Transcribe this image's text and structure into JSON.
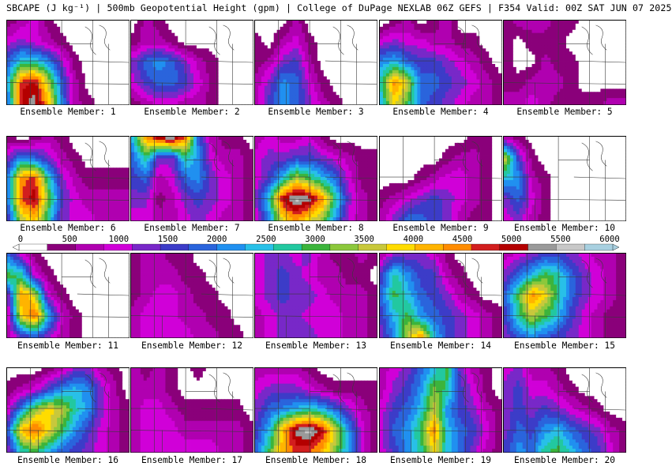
{
  "header": {
    "title": "SBCAPE (J kg⁻¹) | 500mb Geopotential Height (gpm) | College of DuPage NEXLAB 06Z GEFS | F354 Valid: 00Z SAT JUN 07 2025"
  },
  "panels": [
    {
      "label": "Ensemble Member: 1",
      "field": [
        [
          1,
          2,
          3,
          1,
          0,
          0,
          0,
          0,
          0,
          0
        ],
        [
          3,
          4,
          3,
          2,
          1,
          0,
          0,
          0,
          0,
          0
        ],
        [
          6,
          9,
          9,
          7,
          4,
          1,
          0,
          0,
          0,
          0
        ],
        [
          8,
          16,
          17,
          12,
          6,
          2,
          0,
          0,
          0,
          0
        ],
        [
          7,
          17,
          18,
          14,
          7,
          2,
          1,
          0,
          0,
          0
        ]
      ]
    },
    {
      "label": "Ensemble Member: 2",
      "field": [
        [
          0,
          2,
          1,
          0,
          0,
          0,
          0,
          0,
          0,
          0
        ],
        [
          1,
          2,
          2,
          1,
          0,
          0,
          0,
          0,
          0,
          0
        ],
        [
          4,
          6,
          7,
          6,
          4,
          2,
          1,
          0,
          0,
          0
        ],
        [
          3,
          5,
          6,
          6,
          5,
          3,
          1,
          0,
          0,
          0
        ],
        [
          1,
          2,
          3,
          3,
          2,
          2,
          1,
          0,
          0,
          0
        ]
      ]
    },
    {
      "label": "Ensemble Member: 3",
      "field": [
        [
          0,
          0,
          0,
          2,
          0,
          0,
          0,
          0,
          0,
          0
        ],
        [
          1,
          0,
          2,
          3,
          1,
          0,
          0,
          0,
          0,
          0
        ],
        [
          1,
          2,
          4,
          5,
          2,
          0,
          0,
          0,
          0,
          0
        ],
        [
          2,
          4,
          7,
          6,
          3,
          1,
          0,
          0,
          0,
          0
        ],
        [
          2,
          5,
          7,
          6,
          4,
          2,
          1,
          0,
          0,
          0
        ]
      ]
    },
    {
      "label": "Ensemble Member: 4",
      "field": [
        [
          0,
          1,
          2,
          0,
          1,
          2,
          0,
          0,
          0,
          0
        ],
        [
          3,
          4,
          3,
          3,
          2,
          2,
          1,
          1,
          0,
          0
        ],
        [
          7,
          8,
          6,
          5,
          5,
          4,
          3,
          2,
          1,
          0
        ],
        [
          9,
          15,
          12,
          6,
          6,
          5,
          4,
          3,
          2,
          1
        ],
        [
          8,
          13,
          10,
          6,
          5,
          4,
          3,
          2,
          2,
          1
        ]
      ]
    },
    {
      "label": "Ensemble Member: 5",
      "field": [
        [
          1,
          2,
          2,
          2,
          1,
          1,
          0,
          0,
          0,
          0
        ],
        [
          1,
          0,
          1,
          1,
          1,
          0,
          0,
          0,
          0,
          0
        ],
        [
          1,
          0,
          0,
          2,
          1,
          1,
          0,
          0,
          0,
          0
        ],
        [
          1,
          1,
          2,
          2,
          2,
          1,
          0,
          0,
          0,
          0
        ],
        [
          2,
          2,
          3,
          2,
          1,
          1,
          1,
          1,
          2,
          2
        ]
      ]
    },
    {
      "label": "Ensemble Member: 6",
      "field": [
        [
          1,
          0,
          1,
          2,
          1,
          0,
          0,
          0,
          0,
          0
        ],
        [
          4,
          7,
          6,
          4,
          2,
          1,
          0,
          0,
          0,
          0
        ],
        [
          7,
          15,
          16,
          9,
          4,
          2,
          1,
          1,
          1,
          1
        ],
        [
          7,
          16,
          17,
          11,
          5,
          3,
          2,
          2,
          2,
          2
        ],
        [
          5,
          12,
          14,
          9,
          4,
          3,
          3,
          2,
          2,
          2
        ]
      ]
    },
    {
      "label": "Ensemble Member: 7",
      "field": [
        [
          8,
          14,
          17,
          18,
          15,
          6,
          2,
          1,
          1,
          0
        ],
        [
          6,
          9,
          4,
          4,
          9,
          7,
          3,
          2,
          2,
          1
        ],
        [
          5,
          6,
          2,
          3,
          6,
          7,
          4,
          3,
          2,
          1
        ],
        [
          4,
          4,
          1,
          2,
          4,
          5,
          4,
          3,
          2,
          1
        ],
        [
          3,
          3,
          2,
          2,
          3,
          4,
          3,
          2,
          2,
          1
        ]
      ]
    },
    {
      "label": "Ensemble Member: 8",
      "field": [
        [
          2,
          3,
          2,
          2,
          3,
          1,
          0,
          0,
          0,
          0
        ],
        [
          3,
          4,
          4,
          5,
          5,
          4,
          3,
          2,
          1,
          1
        ],
        [
          3,
          5,
          8,
          12,
          10,
          8,
          6,
          3,
          1,
          1
        ],
        [
          4,
          9,
          17,
          19,
          18,
          15,
          9,
          4,
          2,
          1
        ],
        [
          3,
          7,
          13,
          15,
          13,
          11,
          7,
          3,
          2,
          1
        ]
      ]
    },
    {
      "label": "Ensemble Member: 9",
      "field": [
        [
          0,
          0,
          0,
          0,
          0,
          0,
          0,
          1,
          1,
          0
        ],
        [
          0,
          0,
          0,
          0,
          0,
          1,
          2,
          2,
          1,
          0
        ],
        [
          0,
          0,
          0,
          1,
          2,
          3,
          3,
          2,
          1,
          0
        ],
        [
          1,
          2,
          3,
          4,
          5,
          4,
          3,
          2,
          1,
          0
        ],
        [
          2,
          4,
          6,
          6,
          5,
          4,
          2,
          1,
          1,
          0
        ]
      ]
    },
    {
      "label": "Ensemble Member: 10",
      "field": [
        [
          2,
          1,
          0,
          0,
          0,
          0,
          0,
          0,
          0,
          0
        ],
        [
          12,
          5,
          1,
          0,
          0,
          0,
          0,
          0,
          0,
          0
        ],
        [
          8,
          7,
          2,
          1,
          0,
          0,
          0,
          0,
          0,
          0
        ],
        [
          4,
          6,
          3,
          1,
          0,
          0,
          0,
          0,
          0,
          0
        ],
        [
          3,
          4,
          2,
          1,
          0,
          0,
          0,
          0,
          0,
          0
        ]
      ]
    },
    {
      "label": "Ensemble Member: 11",
      "field": [
        [
          6,
          3,
          1,
          0,
          0,
          0,
          0,
          0,
          0,
          0
        ],
        [
          10,
          9,
          3,
          1,
          0,
          0,
          0,
          0,
          0,
          0
        ],
        [
          4,
          15,
          12,
          3,
          1,
          0,
          0,
          0,
          0,
          0
        ],
        [
          3,
          13,
          16,
          8,
          3,
          1,
          0,
          0,
          0,
          0
        ],
        [
          2,
          5,
          6,
          4,
          2,
          1,
          0,
          0,
          0,
          0
        ]
      ]
    },
    {
      "label": "Ensemble Member: 12",
      "field": [
        [
          1,
          2,
          2,
          1,
          1,
          0,
          0,
          0,
          0,
          0
        ],
        [
          1,
          2,
          2,
          2,
          1,
          1,
          0,
          0,
          0,
          0
        ],
        [
          1,
          2,
          3,
          3,
          2,
          1,
          1,
          0,
          0,
          0
        ],
        [
          2,
          3,
          3,
          3,
          2,
          2,
          1,
          1,
          0,
          0
        ],
        [
          2,
          3,
          3,
          3,
          3,
          2,
          2,
          1,
          1,
          0
        ]
      ]
    },
    {
      "label": "Ensemble Member: 13",
      "field": [
        [
          3,
          4,
          4,
          3,
          4,
          2,
          1,
          1,
          2,
          1
        ],
        [
          3,
          4,
          5,
          4,
          3,
          2,
          2,
          1,
          1,
          0
        ],
        [
          3,
          4,
          5,
          4,
          4,
          3,
          2,
          2,
          2,
          1
        ],
        [
          2,
          3,
          4,
          4,
          3,
          3,
          3,
          2,
          2,
          1
        ],
        [
          2,
          3,
          4,
          4,
          4,
          3,
          3,
          2,
          2,
          1
        ]
      ]
    },
    {
      "label": "Ensemble Member: 14",
      "field": [
        [
          2,
          4,
          4,
          4,
          3,
          1,
          0,
          0,
          0,
          0
        ],
        [
          5,
          9,
          7,
          5,
          5,
          2,
          1,
          0,
          0,
          0
        ],
        [
          6,
          10,
          8,
          6,
          5,
          4,
          2,
          1,
          0,
          0
        ],
        [
          5,
          8,
          10,
          7,
          6,
          5,
          4,
          3,
          2,
          1
        ],
        [
          4,
          7,
          12,
          14,
          8,
          5,
          4,
          3,
          2,
          1
        ]
      ]
    },
    {
      "label": "Ensemble Member: 15",
      "field": [
        [
          2,
          3,
          4,
          5,
          5,
          4,
          3,
          2,
          2,
          1
        ],
        [
          4,
          6,
          8,
          10,
          9,
          6,
          4,
          3,
          2,
          1
        ],
        [
          6,
          10,
          15,
          13,
          9,
          6,
          4,
          3,
          2,
          1
        ],
        [
          5,
          9,
          12,
          10,
          8,
          5,
          3,
          2,
          1,
          1
        ],
        [
          4,
          6,
          7,
          6,
          5,
          4,
          3,
          2,
          1,
          1
        ]
      ]
    },
    {
      "label": "Ensemble Member: 16",
      "field": [
        [
          0,
          0,
          0,
          1,
          2,
          4,
          4,
          2,
          1,
          0
        ],
        [
          1,
          2,
          3,
          5,
          7,
          8,
          7,
          4,
          2,
          0
        ],
        [
          3,
          7,
          11,
          13,
          12,
          9,
          7,
          4,
          2,
          1
        ],
        [
          6,
          14,
          16,
          13,
          10,
          7,
          5,
          3,
          2,
          1
        ],
        [
          4,
          9,
          10,
          8,
          6,
          5,
          4,
          3,
          2,
          1
        ]
      ]
    },
    {
      "label": "Ensemble Member: 17",
      "field": [
        [
          2,
          1,
          2,
          1,
          0,
          1,
          0,
          0,
          0,
          0
        ],
        [
          2,
          2,
          2,
          1,
          0,
          0,
          0,
          0,
          0,
          0
        ],
        [
          2,
          3,
          3,
          2,
          1,
          1,
          1,
          1,
          1,
          0
        ],
        [
          2,
          3,
          3,
          3,
          2,
          2,
          2,
          2,
          2,
          1
        ],
        [
          2,
          3,
          3,
          3,
          3,
          3,
          3,
          2,
          2,
          1
        ]
      ]
    },
    {
      "label": "Ensemble Member: 18",
      "field": [
        [
          2,
          2,
          2,
          2,
          1,
          0,
          0,
          0,
          0,
          0
        ],
        [
          3,
          4,
          4,
          4,
          3,
          2,
          1,
          1,
          1,
          1
        ],
        [
          4,
          6,
          7,
          8,
          9,
          8,
          6,
          4,
          2,
          1
        ],
        [
          5,
          8,
          14,
          18,
          19,
          17,
          12,
          7,
          3,
          1
        ],
        [
          6,
          10,
          14,
          16,
          16,
          14,
          11,
          7,
          3,
          1
        ]
      ]
    },
    {
      "label": "Ensemble Member: 19",
      "field": [
        [
          2,
          3,
          4,
          6,
          8,
          10,
          4,
          2,
          1,
          0
        ],
        [
          2,
          4,
          5,
          7,
          11,
          9,
          5,
          3,
          1,
          0
        ],
        [
          3,
          5,
          6,
          8,
          12,
          7,
          5,
          4,
          2,
          1
        ],
        [
          3,
          6,
          7,
          10,
          15,
          8,
          6,
          5,
          3,
          1
        ],
        [
          3,
          5,
          7,
          9,
          13,
          8,
          6,
          4,
          2,
          1
        ]
      ]
    },
    {
      "label": "Ensemble Member: 20",
      "field": [
        [
          3,
          4,
          2,
          2,
          1,
          0,
          0,
          0,
          0,
          0
        ],
        [
          4,
          5,
          3,
          3,
          2,
          1,
          0,
          0,
          0,
          0
        ],
        [
          4,
          5,
          4,
          5,
          4,
          3,
          2,
          1,
          0,
          0
        ],
        [
          4,
          6,
          5,
          7,
          8,
          6,
          5,
          4,
          2,
          1
        ],
        [
          5,
          7,
          6,
          9,
          10,
          8,
          6,
          5,
          3,
          1
        ]
      ]
    }
  ],
  "colorbar": {
    "ticks": [
      "0",
      "500",
      "1000",
      "1500",
      "2000",
      "2500",
      "3000",
      "3500",
      "4000",
      "4500",
      "5000",
      "5500",
      "6000"
    ],
    "colors": [
      "#ffffff",
      "#8a007a",
      "#b000b0",
      "#d000d8",
      "#7828c8",
      "#3c3cc8",
      "#2a64dc",
      "#2090f0",
      "#28c0e8",
      "#22c8a0",
      "#3cb43c",
      "#8cc83c",
      "#c8c83c",
      "#ffdc00",
      "#ffb400",
      "#ff8c00",
      "#d21e1e",
      "#b40000",
      "#9a9a9a",
      "#c8c8c8",
      "#a8d0e0"
    ]
  }
}
